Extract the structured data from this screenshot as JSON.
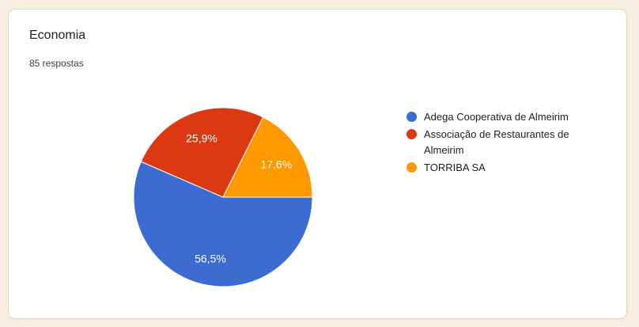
{
  "card": {
    "title": "Economia",
    "responses_label": "85 respostas",
    "responses": 85
  },
  "chart_data": {
    "type": "pie",
    "title": "Economia",
    "subtitle": "85 respostas",
    "categories": [
      "Adega Cooperativa de Almeirim",
      "Associação de Restaurantes de Almeirim",
      "TORRIBA SA"
    ],
    "values": [
      56.5,
      25.9,
      17.6
    ],
    "value_labels": [
      "56,5%",
      "25,9%",
      "17,6%"
    ],
    "colors": [
      "#3C6BD2",
      "#DC3912",
      "#FF9900"
    ],
    "legend_position": "right",
    "start_angle_deg": 0,
    "direction": "clockwise",
    "slice_label_color": "#FFFFFF",
    "slice_separator_color": "#FFFFFF"
  },
  "theme": {
    "page_background": "#F6EFDF",
    "card_background": "#FFFFFF",
    "card_border": "#DCD7CA",
    "title_color": "#202124",
    "subtitle_color": "#3C4043",
    "legend_text_color": "#202124"
  }
}
